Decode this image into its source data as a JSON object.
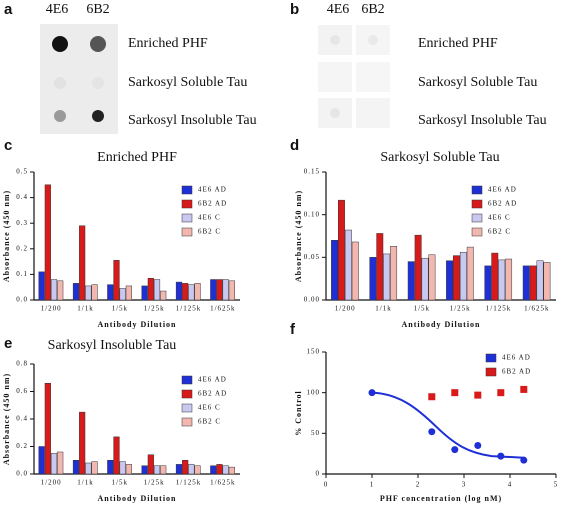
{
  "blots": [
    {
      "label": "a",
      "columns": [
        "4E6",
        "6B2"
      ],
      "rows": [
        "Enriched PHF",
        "Sarkosyl Soluble Tau",
        "Sarkosyl Insoluble Tau"
      ]
    },
    {
      "label": "b",
      "columns": [
        "4E6",
        "6B2"
      ],
      "rows": [
        "Enriched PHF",
        "Sarkosyl Soluble Tau",
        "Sarkosyl Insoluble Tau"
      ]
    }
  ],
  "chart_data": [
    {
      "label": "c",
      "type": "bar",
      "title": "Enriched PHF",
      "y_label": "Absorbance (450 nm)",
      "x_label": "Antibody Dilution",
      "categories": [
        "1/200",
        "1/1k",
        "1/5k",
        "1/25k",
        "1/125k",
        "1/625k"
      ],
      "series": [
        {
          "name": "4E6 AD",
          "color": "#1f2fd6",
          "values": [
            0.11,
            0.065,
            0.06,
            0.055,
            0.07,
            0.08
          ]
        },
        {
          "name": "6B2 AD",
          "color": "#d91a1a",
          "values": [
            0.45,
            0.29,
            0.155,
            0.085,
            0.065,
            0.08
          ]
        },
        {
          "name": "4E6 C",
          "color": "#c8c8f0",
          "values": [
            0.08,
            0.055,
            0.045,
            0.08,
            0.06,
            0.08
          ]
        },
        {
          "name": "6B2 C",
          "color": "#f2b8b0",
          "values": [
            0.075,
            0.06,
            0.055,
            0.035,
            0.065,
            0.075
          ]
        }
      ],
      "ylim": [
        0,
        0.5
      ],
      "yticks": [
        {
          "value": 0,
          "label": "0.0"
        },
        0.1,
        0.2,
        0.3,
        0.4,
        0.5
      ]
    },
    {
      "label": "d",
      "type": "bar",
      "title": "Sarkosyl Soluble Tau",
      "y_label": "Absorbance (450 nm)",
      "x_label": "Antibody Dilution",
      "categories": [
        "1/200",
        "1/1k",
        "1/5k",
        "1/25k",
        "1/125k",
        "1/625k"
      ],
      "series": [
        {
          "name": "4E6 AD",
          "color": "#1f2fd6",
          "values": [
            0.07,
            0.05,
            0.045,
            0.046,
            0.04,
            0.04
          ]
        },
        {
          "name": "6B2 AD",
          "color": "#d91a1a",
          "values": [
            0.117,
            0.078,
            0.076,
            0.052,
            0.055,
            0.04
          ]
        },
        {
          "name": "4E6 C",
          "color": "#c8c8f0",
          "values": [
            0.082,
            0.054,
            0.049,
            0.056,
            0.047,
            0.046
          ]
        },
        {
          "name": "6B2 C",
          "color": "#f2b8b0",
          "values": [
            0.068,
            0.063,
            0.053,
            0.062,
            0.048,
            0.044
          ]
        }
      ],
      "ylim": [
        0,
        0.15
      ],
      "yticks": [
        {
          "value": 0,
          "label": "0.00"
        },
        0.05,
        {
          "value": 0.1,
          "label": "0.10"
        },
        0.15
      ]
    },
    {
      "label": "e",
      "type": "bar",
      "title": "Sarkosyl Insoluble Tau",
      "y_label": "Absorbance (450 nm)",
      "x_label": "Antibody Dilution",
      "categories": [
        "1/200",
        "1/1k",
        "1/5k",
        "1/25k",
        "1/125k",
        "1/625k"
      ],
      "series": [
        {
          "name": "4E6 AD",
          "color": "#1f2fd6",
          "values": [
            0.2,
            0.1,
            0.1,
            0.06,
            0.07,
            0.06
          ]
        },
        {
          "name": "6B2 AD",
          "color": "#d91a1a",
          "values": [
            0.66,
            0.45,
            0.27,
            0.14,
            0.1,
            0.07
          ]
        },
        {
          "name": "4E6 C",
          "color": "#c8c8f0",
          "values": [
            0.15,
            0.08,
            0.09,
            0.06,
            0.07,
            0.06
          ]
        },
        {
          "name": "6B2 C",
          "color": "#f2b8b0",
          "values": [
            0.16,
            0.09,
            0.07,
            0.06,
            0.06,
            0.05
          ]
        }
      ],
      "ylim": [
        0,
        0.8
      ],
      "yticks": [
        {
          "value": 0,
          "label": "0.0"
        },
        0.2,
        0.4,
        0.6,
        0.8
      ]
    },
    {
      "label": "f",
      "type": "scatter",
      "y_label": "% Control",
      "x_label": "PHF concentration (log nM)",
      "series": [
        {
          "name": "4E6 AD",
          "color": "#1f2fd6",
          "x": [
            1,
            2.3,
            2.8,
            3.3,
            3.8,
            4.3
          ],
          "values": [
            100,
            52,
            30,
            35,
            22,
            17
          ]
        },
        {
          "name": "6B2 AD",
          "color": "#d91a1a",
          "x": [
            2.3,
            2.8,
            3.3,
            3.8,
            4.3
          ],
          "values": [
            95,
            100,
            97,
            100,
            104
          ]
        }
      ],
      "xlim": [
        0,
        5
      ],
      "xticks": [
        0,
        1,
        2,
        3,
        4,
        5
      ],
      "ylim": [
        0,
        150
      ],
      "yticks": [
        0,
        50,
        100,
        150
      ]
    }
  ]
}
